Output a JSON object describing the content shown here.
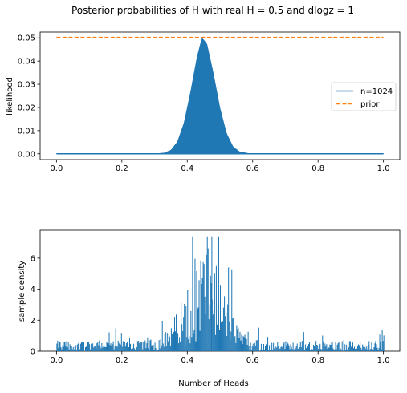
{
  "figure": {
    "suptitle": "Posterior probabilities of H with real H = 0.5 and dlogz = 1"
  },
  "chart_data": [
    {
      "type": "line",
      "title": "",
      "xlabel": "",
      "ylabel": "likelihood",
      "xlim": [
        -0.05,
        1.05
      ],
      "ylim": [
        -0.0025,
        0.0525
      ],
      "x_ticks": [
        0.0,
        0.2,
        0.4,
        0.6,
        0.8,
        1.0
      ],
      "x_tick_labels": [
        "0.0",
        "0.2",
        "0.4",
        "0.6",
        "0.8",
        "1.0"
      ],
      "y_ticks": [
        0.0,
        0.01,
        0.02,
        0.03,
        0.04,
        0.05
      ],
      "y_tick_labels": [
        "0.00",
        "0.01",
        "0.02",
        "0.03",
        "0.04",
        "0.05"
      ],
      "grid": false,
      "legend": {
        "position": "right",
        "entries": [
          {
            "label": "n=1024",
            "color": "#1f77b4",
            "style": "solid"
          },
          {
            "label": "prior",
            "color": "#ff7f0e",
            "style": "dashed"
          }
        ]
      },
      "series": [
        {
          "name": "n=1024",
          "color": "#1f77b4",
          "style": "solid",
          "x": [
            0.0,
            0.3,
            0.33,
            0.35,
            0.37,
            0.39,
            0.41,
            0.43,
            0.445,
            0.46,
            0.48,
            0.5,
            0.52,
            0.54,
            0.56,
            0.59,
            1.0
          ],
          "y": [
            0.0,
            0.0,
            0.0004,
            0.0016,
            0.0052,
            0.0133,
            0.0266,
            0.0418,
            0.05,
            0.0475,
            0.0346,
            0.0198,
            0.0089,
            0.0031,
            0.0009,
            0.0001,
            0.0
          ]
        },
        {
          "name": "prior",
          "color": "#ff7f0e",
          "style": "dashed",
          "x": [
            0.0,
            1.0
          ],
          "y": [
            0.0502,
            0.0502
          ]
        }
      ]
    },
    {
      "type": "bar",
      "title": "",
      "xlabel": "Number of Heads",
      "ylabel": "sample density",
      "xlim": [
        -0.05,
        1.05
      ],
      "ylim": [
        0,
        7.8
      ],
      "x_ticks": [
        0.0,
        0.2,
        0.4,
        0.6,
        0.8,
        1.0
      ],
      "x_tick_labels": [
        "0.0",
        "0.2",
        "0.4",
        "0.6",
        "0.8",
        "1.0"
      ],
      "y_ticks": [
        0,
        2,
        4,
        6
      ],
      "y_tick_labels": [
        "0",
        "2",
        "4",
        "6"
      ],
      "grid": false,
      "color": "#1f77b4",
      "bins": [
        0.0,
        1.0
      ],
      "bar_width": 0.0025,
      "peak_center": 0.45,
      "peak_max": 7.4,
      "background_level": 0.4
    }
  ]
}
